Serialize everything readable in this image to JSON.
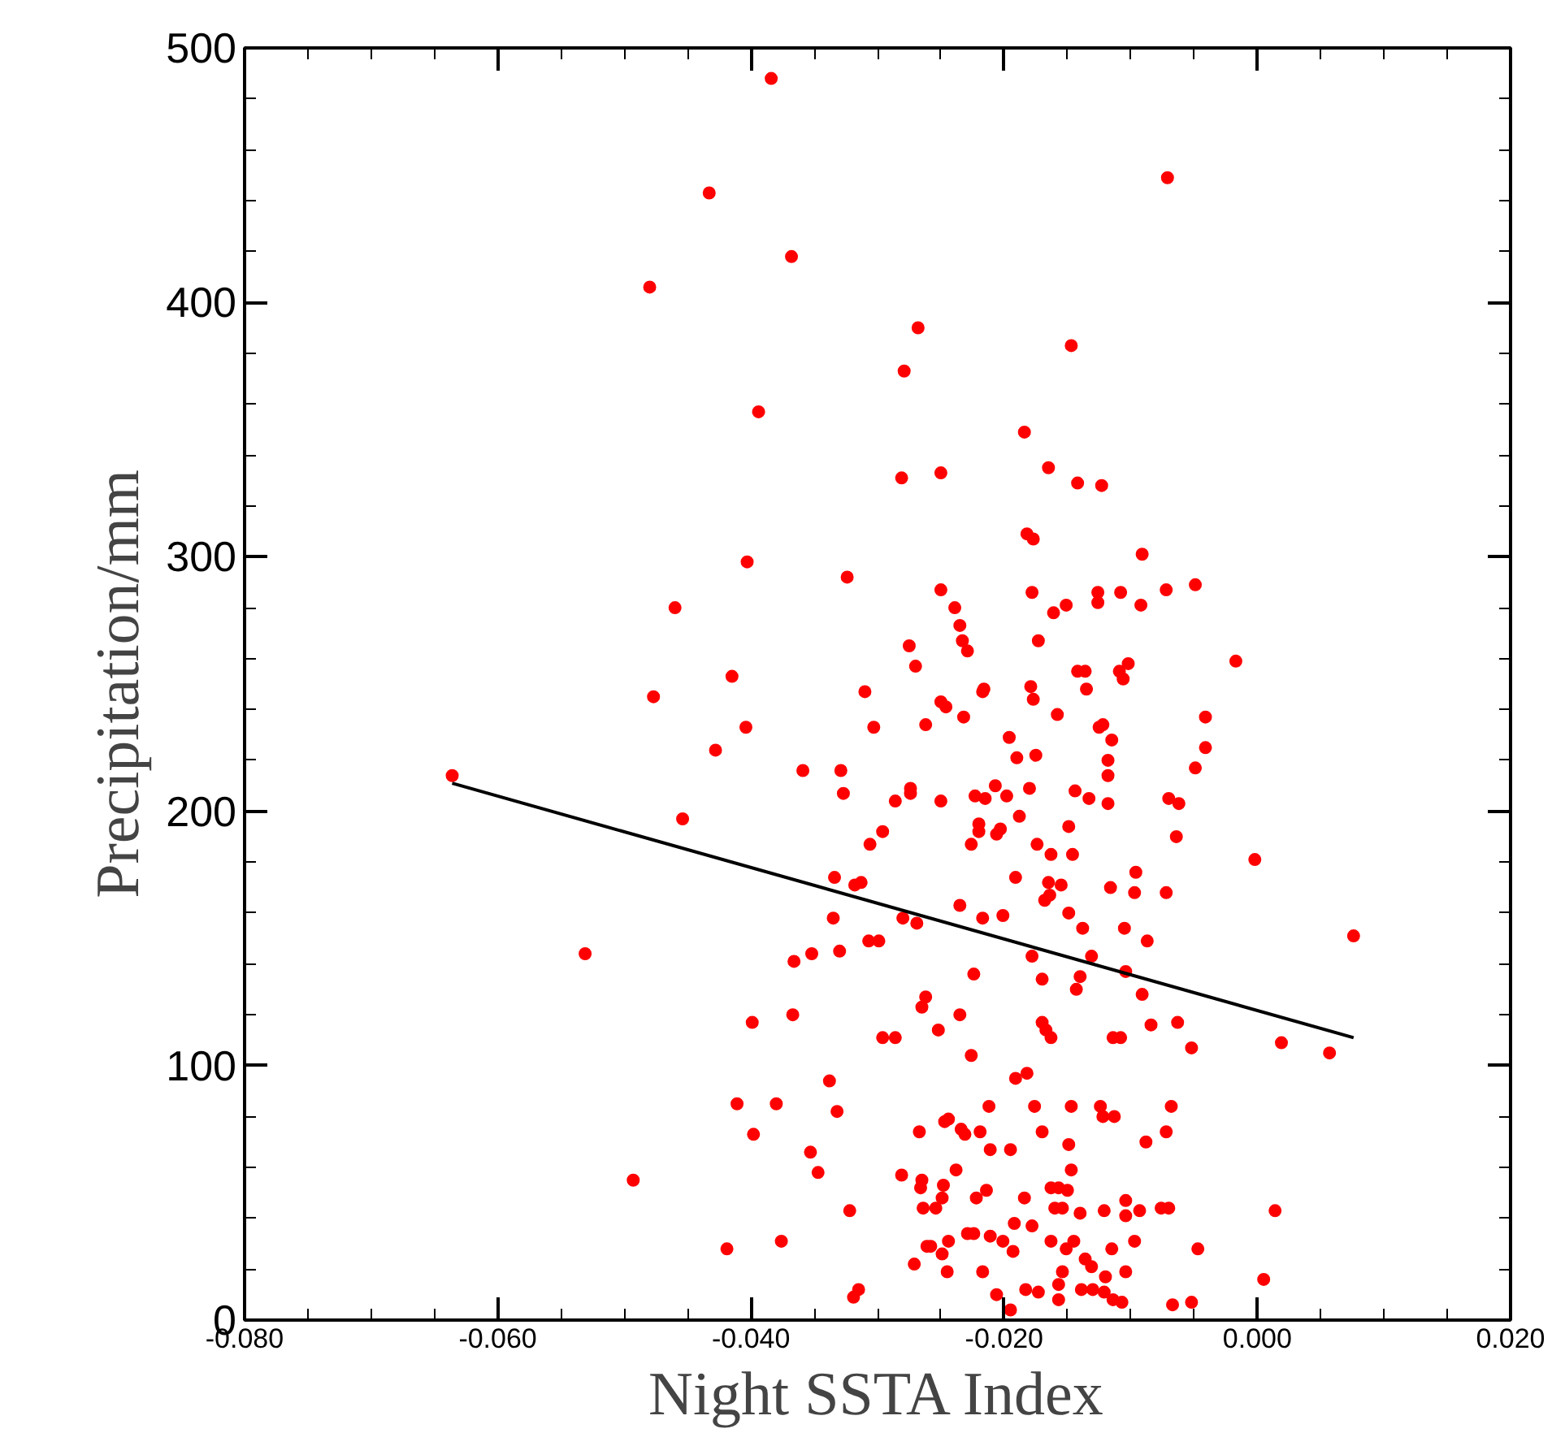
{
  "chart_data": {
    "type": "scatter",
    "xlabel": "Night SSTA Index",
    "ylabel": "Precipitation/mm",
    "xlim": [
      -0.08,
      0.02
    ],
    "ylim": [
      0,
      500
    ],
    "xticks": [
      {
        "value": -0.08,
        "label": "-0.080"
      },
      {
        "value": -0.06,
        "label": "-0.060"
      },
      {
        "value": -0.04,
        "label": "-0.040"
      },
      {
        "value": -0.02,
        "label": "-0.020"
      },
      {
        "value": 0,
        "label": "0.000"
      },
      {
        "value": 0.02,
        "label": "0.020"
      }
    ],
    "yticks": [
      0,
      100,
      200,
      300,
      400,
      500
    ],
    "grid": false,
    "marker": "circle",
    "series": [
      {
        "color": "#ff0000",
        "x": [
          -0.0384,
          -0.0433,
          -0.0368,
          -0.048,
          -0.0268,
          -0.0279,
          -0.0394,
          -0.0281,
          -0.0403,
          -0.0324,
          -0.046,
          -0.0275,
          -0.027,
          -0.0415,
          -0.0071,
          -0.0147,
          -0.0184,
          -0.025,
          -0.0165,
          -0.0142,
          -0.0123,
          -0.0182,
          -0.0177,
          -0.0091,
          -0.025,
          -0.0178,
          -0.0126,
          -0.0126,
          -0.0108,
          -0.0092,
          -0.0072,
          -0.0049,
          -0.0239,
          -0.0161,
          -0.0151,
          -0.0235,
          -0.0233,
          -0.0229,
          -0.0173,
          -0.0017,
          -0.0142,
          -0.0136,
          -0.0109,
          -0.0102,
          -0.0106,
          -0.0216,
          -0.0179,
          -0.0135,
          -0.0477,
          -0.031,
          -0.0404,
          -0.0303,
          -0.0262,
          -0.0428,
          -0.0359,
          -0.0329,
          -0.0327,
          -0.0274,
          -0.0274,
          -0.0286,
          -0.0636,
          -0.0454,
          -0.0296,
          -0.0306,
          -0.0334,
          -0.0318,
          -0.0313,
          -0.0335,
          -0.028,
          -0.0269,
          -0.0531,
          -0.0366,
          -0.0352,
          -0.033,
          -0.0307,
          -0.0299,
          -0.0262,
          -0.0265,
          -0.0399,
          -0.0367,
          -0.0296,
          -0.0286,
          -0.0338,
          -0.0411,
          -0.038,
          -0.0332,
          -0.0398,
          -0.0267,
          -0.0353,
          -0.0347,
          -0.0493,
          -0.0281,
          -0.0265,
          -0.0266,
          -0.0264,
          -0.0322,
          -0.0261,
          -0.0419,
          -0.0376,
          -0.0271,
          -0.0315,
          -0.0319,
          -0.025,
          -0.0217,
          -0.0177,
          -0.0246,
          -0.0232,
          -0.0122,
          -0.0158,
          -0.0125,
          -0.0196,
          -0.019,
          -0.0175,
          -0.0115,
          -0.0118,
          -0.0118,
          -0.0041,
          -0.0041,
          -0.0049,
          -0.025,
          -0.0223,
          -0.0215,
          -0.0207,
          -0.0198,
          -0.018,
          -0.0144,
          -0.0133,
          -0.0118,
          -0.007,
          -0.0062,
          -0.0064,
          -0.022,
          -0.022,
          -0.0226,
          -0.0206,
          -0.0203,
          -0.0188,
          -0.0174,
          -0.0149,
          -0.0163,
          -0.0146,
          -0.0191,
          -0.0165,
          -0.0155,
          -0.0168,
          -0.0164,
          -0.0116,
          -0.0096,
          -0.0097,
          -0.0072,
          -0.0002,
          -0.0235,
          -0.0217,
          -0.0201,
          -0.0149,
          -0.0138,
          -0.0105,
          -0.0087,
          -0.0178,
          -0.0131,
          -0.0224,
          -0.017,
          -0.014,
          -0.0143,
          -0.0104,
          -0.0091,
          0.0076,
          -0.0235,
          -0.0252,
          -0.017,
          -0.0167,
          -0.0163,
          -0.0084,
          -0.0063,
          -0.0052,
          0.0019,
          0.0057,
          -0.0114,
          -0.0108,
          -0.0226,
          -0.0191,
          -0.0182,
          -0.0212,
          -0.0176,
          -0.0147,
          -0.0124,
          -0.0122,
          -0.0113,
          -0.0068,
          -0.0247,
          -0.0244,
          -0.0234,
          -0.0231,
          -0.0219,
          -0.017,
          -0.0211,
          -0.0195,
          -0.0149,
          -0.0147,
          -0.0088,
          -0.0072,
          -0.0238,
          -0.0248,
          -0.0249,
          -0.0254,
          -0.0222,
          -0.0214,
          -0.0184,
          -0.0163,
          -0.0157,
          -0.015,
          -0.016,
          -0.0154,
          -0.014,
          -0.0121,
          -0.0104,
          -0.0104,
          -0.0093,
          -0.0076,
          -0.007,
          0.0014,
          -0.0192,
          -0.0178,
          -0.0229,
          -0.0224,
          -0.0211,
          -0.0201,
          -0.0193,
          -0.0163,
          -0.0151,
          -0.0145,
          -0.0258,
          -0.0249,
          -0.0244,
          -0.0245,
          -0.0217,
          -0.0115,
          -0.0097,
          -0.0047,
          -0.0136,
          -0.0131,
          -0.0154,
          -0.0157,
          -0.012,
          -0.0104,
          0.0005,
          -0.0206,
          -0.0195,
          -0.0183,
          -0.0173,
          -0.0157,
          -0.0139,
          -0.013,
          -0.0121,
          -0.0114,
          -0.0107,
          -0.0067,
          -0.0052
        ],
        "values": [
          488,
          443,
          418,
          406,
          390,
          373,
          357,
          331,
          298,
          292,
          280,
          265,
          257,
          253,
          449,
          383,
          349,
          333,
          335,
          329,
          328,
          309,
          307,
          301,
          287,
          286,
          286,
          282,
          286,
          281,
          287,
          289,
          280,
          278,
          281,
          273,
          267,
          263,
          267,
          259,
          255,
          255,
          255,
          258,
          252,
          248,
          249,
          248,
          245,
          247,
          233,
          233,
          234,
          224,
          216,
          216,
          207,
          209,
          207,
          204,
          214,
          197,
          192,
          187,
          174,
          171,
          172,
          158,
          158,
          156,
          144,
          141,
          144,
          145,
          149,
          149,
          127,
          123,
          117,
          120,
          111,
          111,
          94,
          85,
          85,
          82,
          73,
          74,
          66,
          58,
          55,
          57,
          55,
          52,
          44,
          43,
          29,
          28,
          31,
          22,
          12,
          9,
          243,
          247,
          244,
          241,
          237,
          234,
          238,
          233,
          229,
          221,
          222,
          228,
          220,
          214,
          237,
          225,
          217,
          204,
          206,
          205,
          210,
          206,
          209,
          208,
          205,
          203,
          205,
          203,
          190,
          195,
          192,
          187,
          191,
          193,
          198,
          187,
          194,
          183,
          183,
          174,
          172,
          171,
          165,
          167,
          170,
          176,
          168,
          168,
          181,
          163,
          158,
          159,
          160,
          154,
          154,
          149,
          143,
          143,
          136,
          134,
          135,
          130,
          137,
          128,
          151,
          120,
          114,
          117,
          114,
          111,
          116,
          117,
          107,
          109,
          105,
          111,
          111,
          104,
          95,
          97,
          84,
          84,
          84,
          84,
          80,
          80,
          84,
          78,
          79,
          75,
          73,
          74,
          74,
          67,
          67,
          69,
          59,
          70,
          74,
          59,
          53,
          48,
          44,
          48,
          51,
          48,
          52,
          52,
          51,
          44,
          44,
          42,
          43,
          47,
          41,
          43,
          44,
          44,
          43,
          38,
          37,
          34,
          34,
          33,
          31,
          27,
          31,
          28,
          31,
          29,
          26,
          31,
          19,
          19,
          28,
          31,
          28,
          24,
          21,
          19,
          14,
          17,
          19,
          16,
          10,
          4,
          12,
          11,
          8,
          12,
          12,
          11,
          8,
          7,
          6,
          7
        ]
      },
      {
        "type": "line",
        "marker": "none",
        "color": "#000000",
        "x": [
          -0.0636,
          0.0076
        ],
        "values": [
          211,
          111
        ]
      }
    ]
  }
}
